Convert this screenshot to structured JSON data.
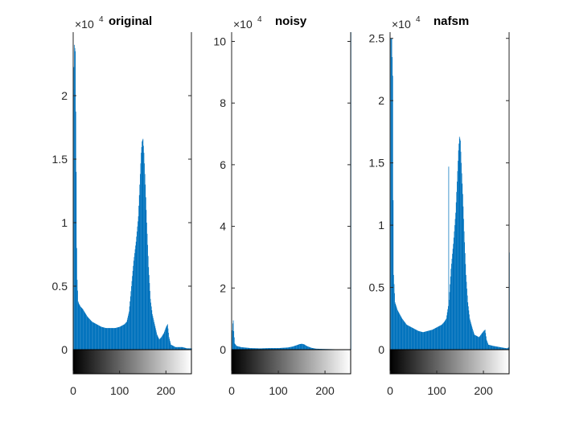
{
  "figure": {
    "colors": {
      "bar": "#0072BD",
      "axis": "#262626",
      "background": "#ffffff"
    }
  },
  "chart_data": [
    {
      "type": "bar",
      "title": "original",
      "exponent": {
        "base": "×10",
        "power": "4"
      },
      "xlabel": "",
      "ylabel": "",
      "xlim": [
        0,
        255
      ],
      "ylim": [
        0,
        2.5
      ],
      "xticks": [
        "0",
        "100",
        "200"
      ],
      "yticks": [
        "0",
        "0.5",
        "1",
        "1.5",
        "2"
      ],
      "colorbar": "grayscale",
      "profile": [
        [
          0,
          2.05
        ],
        [
          2,
          2.4
        ],
        [
          4,
          2.35
        ],
        [
          6,
          1.4
        ],
        [
          7,
          0.8
        ],
        [
          8,
          0.55
        ],
        [
          10,
          0.38
        ],
        [
          12,
          0.36
        ],
        [
          15,
          0.34
        ],
        [
          20,
          0.32
        ],
        [
          30,
          0.26
        ],
        [
          40,
          0.22
        ],
        [
          50,
          0.2
        ],
        [
          60,
          0.18
        ],
        [
          70,
          0.17
        ],
        [
          80,
          0.17
        ],
        [
          90,
          0.17
        ],
        [
          100,
          0.18
        ],
        [
          110,
          0.2
        ],
        [
          115,
          0.22
        ],
        [
          120,
          0.3
        ],
        [
          125,
          0.5
        ],
        [
          130,
          0.7
        ],
        [
          135,
          0.85
        ],
        [
          140,
          1.05
        ],
        [
          143,
          1.3
        ],
        [
          146,
          1.55
        ],
        [
          148,
          1.64
        ],
        [
          150,
          1.66
        ],
        [
          152,
          1.55
        ],
        [
          155,
          1.3
        ],
        [
          158,
          1.0
        ],
        [
          162,
          0.65
        ],
        [
          166,
          0.4
        ],
        [
          170,
          0.28
        ],
        [
          175,
          0.2
        ],
        [
          180,
          0.12
        ],
        [
          185,
          0.08
        ],
        [
          190,
          0.1
        ],
        [
          195,
          0.13
        ],
        [
          200,
          0.18
        ],
        [
          203,
          0.2
        ],
        [
          206,
          0.1
        ],
        [
          210,
          0.04
        ],
        [
          220,
          0.02
        ],
        [
          235,
          0.02
        ],
        [
          245,
          0.01
        ],
        [
          255,
          0.01
        ]
      ]
    },
    {
      "type": "bar",
      "title": "noisy",
      "exponent": {
        "base": "×10",
        "power": "4"
      },
      "xlabel": "",
      "ylabel": "",
      "xlim": [
        0,
        255
      ],
      "ylim": [
        0,
        10.3
      ],
      "xticks": [
        "0",
        "100",
        "200"
      ],
      "yticks": [
        "0",
        "2",
        "4",
        "6",
        "8",
        "10"
      ],
      "colorbar": "grayscale",
      "profile": [
        [
          0,
          0.4
        ],
        [
          2,
          0.85
        ],
        [
          3,
          0.95
        ],
        [
          4,
          0.6
        ],
        [
          6,
          0.2
        ],
        [
          10,
          0.12
        ],
        [
          20,
          0.08
        ],
        [
          40,
          0.05
        ],
        [
          60,
          0.04
        ],
        [
          80,
          0.05
        ],
        [
          100,
          0.05
        ],
        [
          120,
          0.07
        ],
        [
          130,
          0.1
        ],
        [
          140,
          0.15
        ],
        [
          145,
          0.18
        ],
        [
          150,
          0.19
        ],
        [
          155,
          0.17
        ],
        [
          160,
          0.12
        ],
        [
          170,
          0.06
        ],
        [
          180,
          0.03
        ],
        [
          200,
          0.02
        ],
        [
          230,
          0.01
        ],
        [
          254,
          0.01
        ],
        [
          255,
          10.3
        ]
      ]
    },
    {
      "type": "bar",
      "title": "nafsm",
      "exponent": {
        "base": "×10",
        "power": "4"
      },
      "xlabel": "",
      "ylabel": "",
      "xlim": [
        0,
        255
      ],
      "ylim": [
        0,
        2.55
      ],
      "xticks": [
        "0",
        "100",
        "200"
      ],
      "yticks": [
        "0",
        "0.5",
        "1",
        "1.5",
        "2",
        "2.5"
      ],
      "colorbar": "grayscale",
      "profile": [
        [
          0,
          1.2
        ],
        [
          1,
          2.5
        ],
        [
          3,
          2.5
        ],
        [
          5,
          2.2
        ],
        [
          6,
          1.2
        ],
        [
          7,
          0.6
        ],
        [
          10,
          0.38
        ],
        [
          15,
          0.32
        ],
        [
          25,
          0.25
        ],
        [
          35,
          0.2
        ],
        [
          50,
          0.17
        ],
        [
          60,
          0.15
        ],
        [
          70,
          0.14
        ],
        [
          80,
          0.15
        ],
        [
          90,
          0.16
        ],
        [
          100,
          0.18
        ],
        [
          110,
          0.2
        ],
        [
          115,
          0.22
        ],
        [
          120,
          0.25
        ],
        [
          124,
          0.35
        ],
        [
          125,
          1.47
        ],
        [
          126,
          0.4
        ],
        [
          130,
          0.65
        ],
        [
          135,
          0.85
        ],
        [
          140,
          1.1
        ],
        [
          143,
          1.35
        ],
        [
          146,
          1.6
        ],
        [
          148,
          1.71
        ],
        [
          150,
          1.68
        ],
        [
          152,
          1.5
        ],
        [
          155,
          1.25
        ],
        [
          158,
          0.95
        ],
        [
          162,
          0.6
        ],
        [
          166,
          0.38
        ],
        [
          170,
          0.25
        ],
        [
          175,
          0.18
        ],
        [
          180,
          0.12
        ],
        [
          190,
          0.1
        ],
        [
          200,
          0.15
        ],
        [
          203,
          0.16
        ],
        [
          206,
          0.08
        ],
        [
          210,
          0.04
        ],
        [
          220,
          0.03
        ],
        [
          235,
          0.02
        ],
        [
          250,
          0.01
        ],
        [
          254,
          0.02
        ],
        [
          255,
          0.78
        ]
      ]
    }
  ]
}
